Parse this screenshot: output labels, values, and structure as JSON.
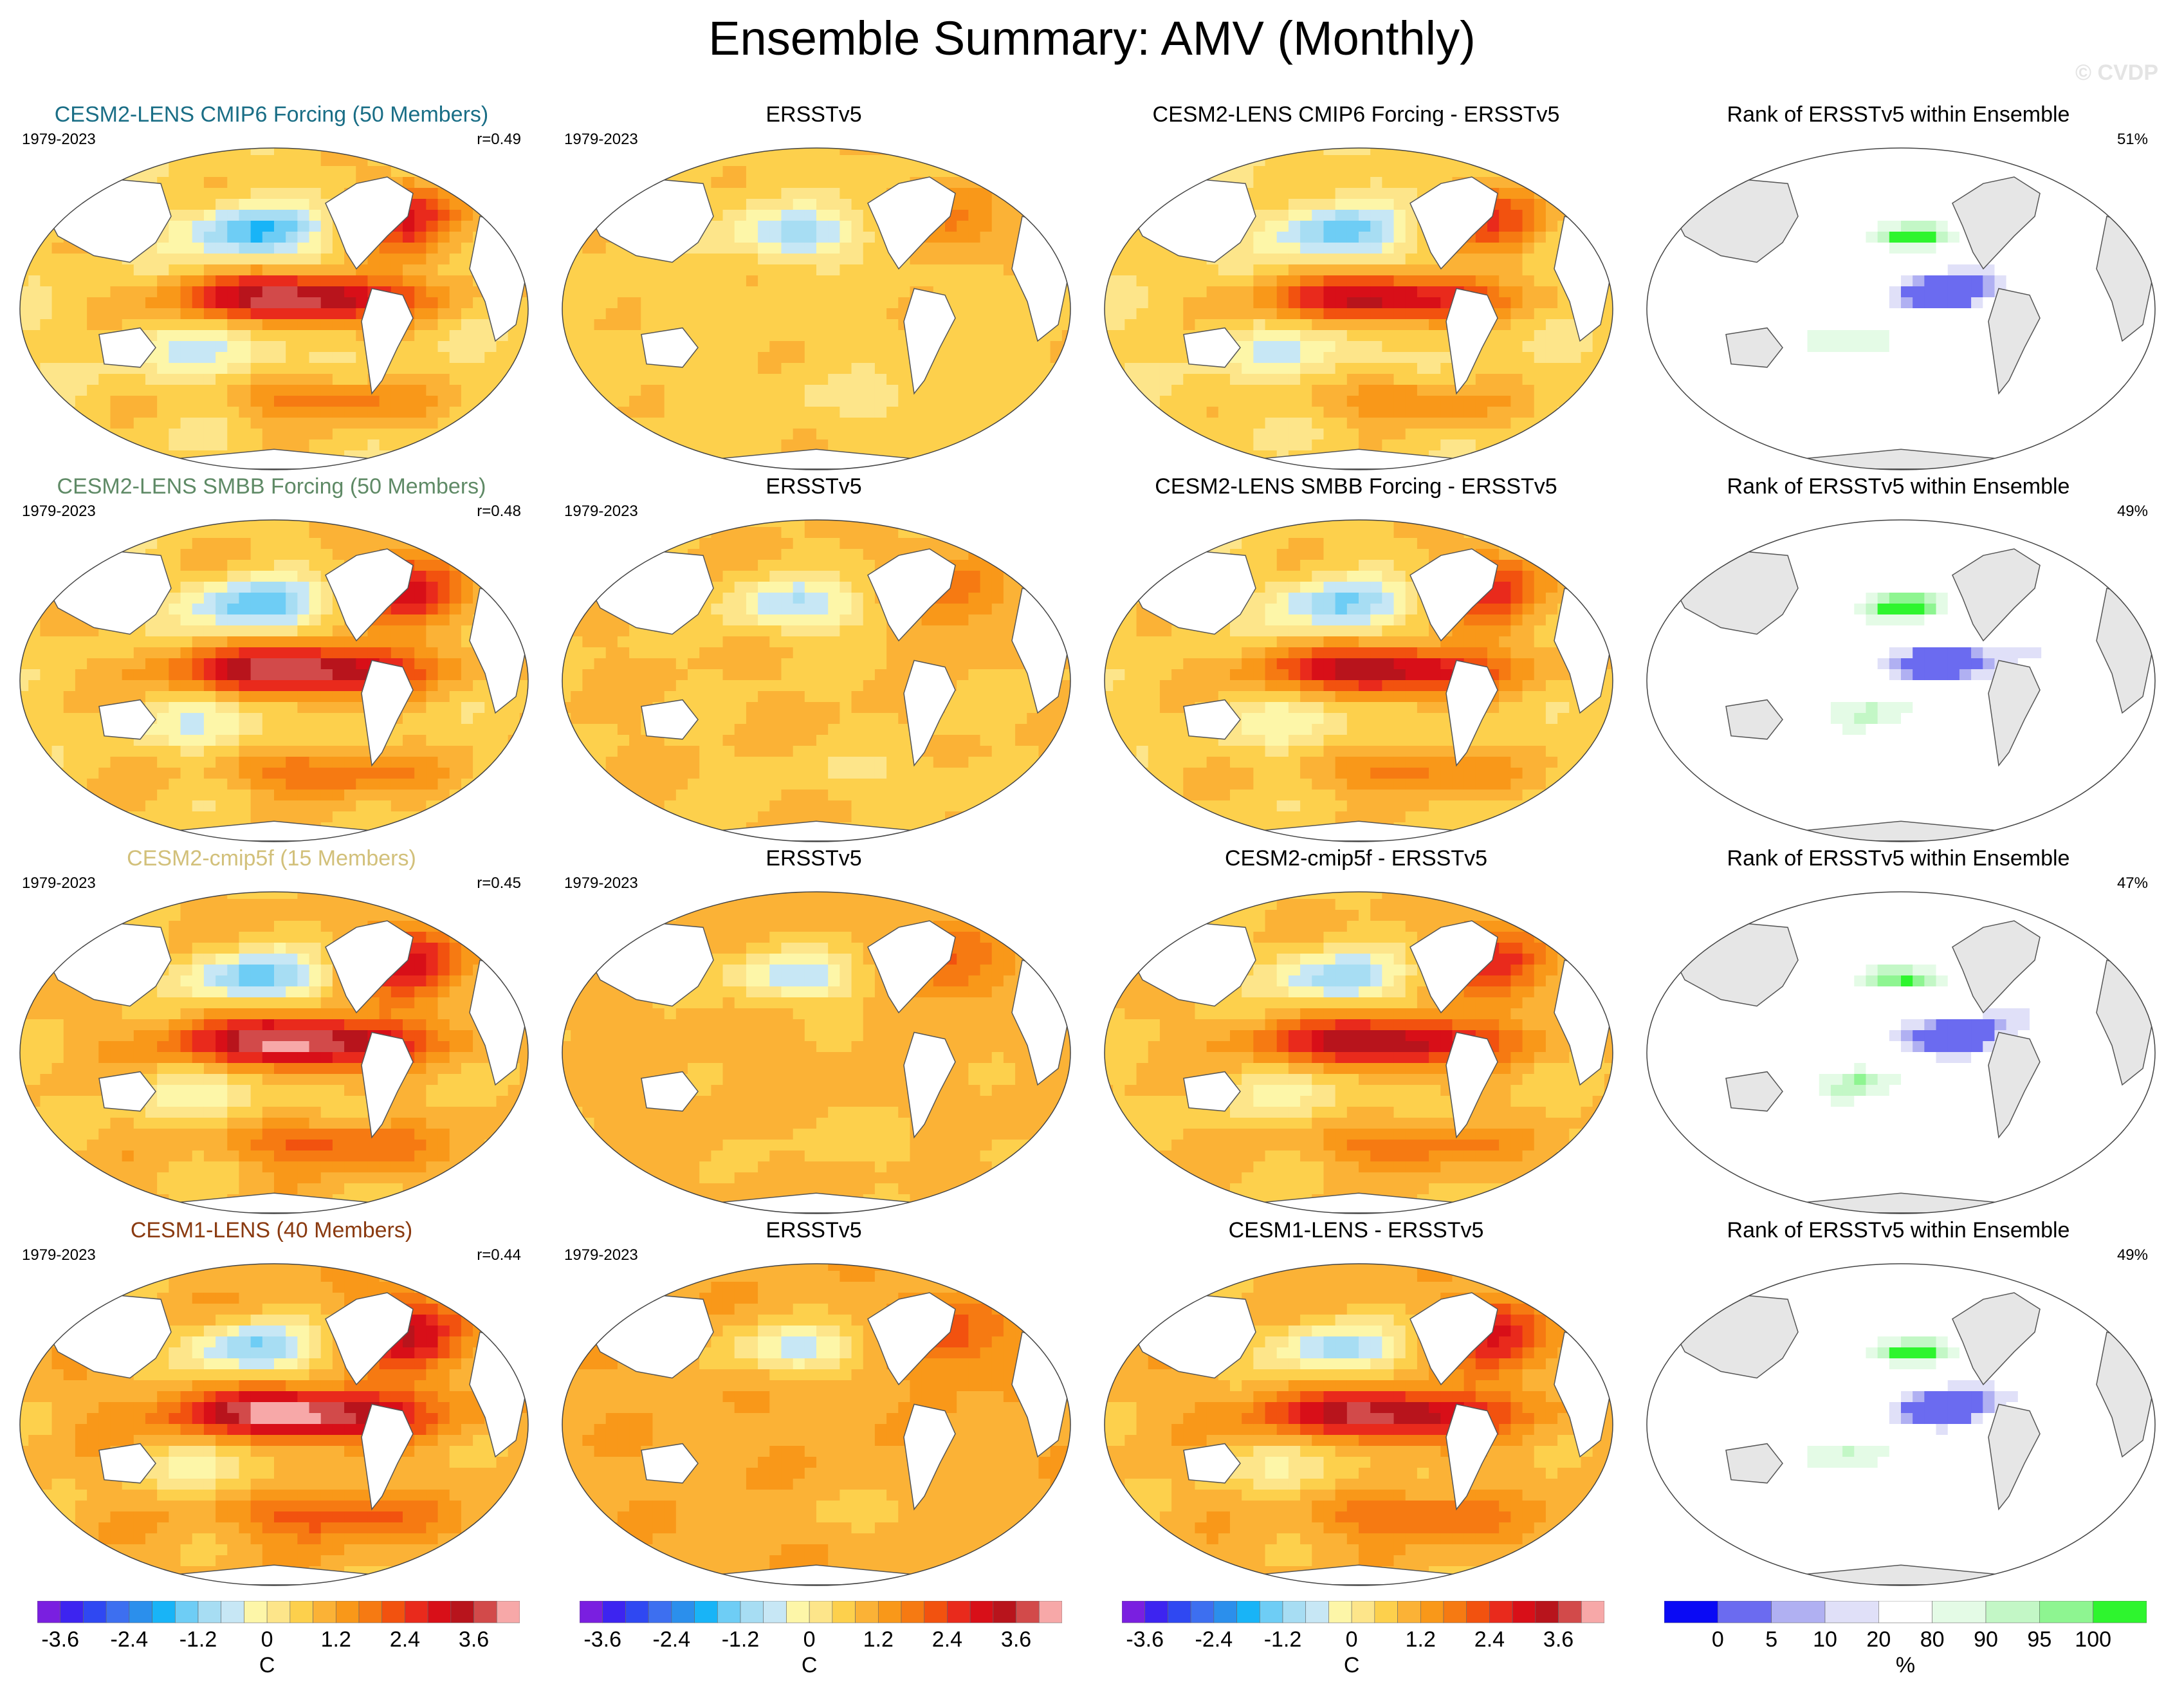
{
  "title": "Ensemble Summary: AMV (Monthly)",
  "watermark": "© CVDP",
  "colors": {
    "diverging": [
      "#7a1fe0",
      "#3d24f0",
      "#2f48f2",
      "#3d6ff0",
      "#2b8fec",
      "#18b4f7",
      "#6ecdf5",
      "#a7ddf3",
      "#c7e7f5",
      "#fdf6a8",
      "#fde58a",
      "#fdd04c",
      "#fbb236",
      "#f99819",
      "#f67a12",
      "#f2520f",
      "#e92a1c",
      "#d80f18",
      "#b8141c",
      "#d24a4a",
      "#f7a8a8"
    ],
    "rank": [
      "#0a0af5",
      "#6b6bf0",
      "#b0b0f2",
      "#e0e0f8",
      "#ffffff",
      "#e4fbe6",
      "#c3f7c6",
      "#8ef591",
      "#2ef52e"
    ],
    "land": "#ffffff",
    "rank_land": "#e6e6e6",
    "coast": "#555555"
  },
  "chart_data": [
    {
      "row": 1,
      "col": 1,
      "type": "heatmap",
      "title": "CESM2-LENS CMIP6 Forcing (50 Members)",
      "title_color": "#1a6e86",
      "years": "1979-2023",
      "corr": "r=0.49",
      "variable": "AMV SST regression",
      "units": "C"
    },
    {
      "row": 1,
      "col": 2,
      "type": "heatmap",
      "title": "ERSSTv5",
      "title_color": "#000000",
      "years": "1979-2023",
      "corr": "",
      "variable": "AMV SST regression",
      "units": "C"
    },
    {
      "row": 1,
      "col": 3,
      "type": "heatmap",
      "title": "CESM2-LENS CMIP6 Forcing - ERSSTv5",
      "title_color": "#000000",
      "years": "",
      "corr": "",
      "variable": "difference",
      "units": "C"
    },
    {
      "row": 1,
      "col": 4,
      "type": "heatmap",
      "title": "Rank of ERSSTv5 within Ensemble",
      "title_color": "#000000",
      "years": "",
      "corr": "51%",
      "variable": "rank",
      "units": "%"
    },
    {
      "row": 2,
      "col": 1,
      "type": "heatmap",
      "title": "CESM2-LENS SMBB Forcing (50 Members)",
      "title_color": "#5f8a66",
      "years": "1979-2023",
      "corr": "r=0.48",
      "variable": "AMV SST regression",
      "units": "C"
    },
    {
      "row": 2,
      "col": 2,
      "type": "heatmap",
      "title": "ERSSTv5",
      "title_color": "#000000",
      "years": "1979-2023",
      "corr": "",
      "variable": "AMV SST regression",
      "units": "C"
    },
    {
      "row": 2,
      "col": 3,
      "type": "heatmap",
      "title": "CESM2-LENS SMBB Forcing - ERSSTv5",
      "title_color": "#000000",
      "years": "",
      "corr": "",
      "variable": "difference",
      "units": "C"
    },
    {
      "row": 2,
      "col": 4,
      "type": "heatmap",
      "title": "Rank of ERSSTv5 within Ensemble",
      "title_color": "#000000",
      "years": "",
      "corr": "49%",
      "variable": "rank",
      "units": "%"
    },
    {
      "row": 3,
      "col": 1,
      "type": "heatmap",
      "title": "CESM2-cmip5f (15 Members)",
      "title_color": "#d2c07a",
      "years": "1979-2023",
      "corr": "r=0.45",
      "variable": "AMV SST regression",
      "units": "C"
    },
    {
      "row": 3,
      "col": 2,
      "type": "heatmap",
      "title": "ERSSTv5",
      "title_color": "#000000",
      "years": "1979-2023",
      "corr": "",
      "variable": "AMV SST regression",
      "units": "C"
    },
    {
      "row": 3,
      "col": 3,
      "type": "heatmap",
      "title": "CESM2-cmip5f - ERSSTv5",
      "title_color": "#000000",
      "years": "",
      "corr": "",
      "variable": "difference",
      "units": "C"
    },
    {
      "row": 3,
      "col": 4,
      "type": "heatmap",
      "title": "Rank of ERSSTv5 within Ensemble",
      "title_color": "#000000",
      "years": "",
      "corr": "47%",
      "variable": "rank",
      "units": "%"
    },
    {
      "row": 4,
      "col": 1,
      "type": "heatmap",
      "title": "CESM1-LENS (40 Members)",
      "title_color": "#8a3a10",
      "years": "1979-2023",
      "corr": "r=0.44",
      "variable": "AMV SST regression",
      "units": "C"
    },
    {
      "row": 4,
      "col": 2,
      "type": "heatmap",
      "title": "ERSSTv5",
      "title_color": "#000000",
      "years": "1979-2023",
      "corr": "",
      "variable": "AMV SST regression",
      "units": "C"
    },
    {
      "row": 4,
      "col": 3,
      "type": "heatmap",
      "title": "CESM1-LENS - ERSSTv5",
      "title_color": "#000000",
      "years": "",
      "corr": "",
      "variable": "difference",
      "units": "C"
    },
    {
      "row": 4,
      "col": 4,
      "type": "heatmap",
      "title": "Rank of ERSSTv5 within Ensemble",
      "title_color": "#000000",
      "years": "",
      "corr": "49%",
      "variable": "rank",
      "units": "%"
    }
  ],
  "colorbars": {
    "diverging": {
      "levels": [
        -4.0,
        -3.6,
        -3.2,
        -2.8,
        -2.4,
        -2.0,
        -1.6,
        -1.2,
        -0.8,
        -0.4,
        0,
        0.4,
        0.8,
        1.2,
        1.6,
        2.0,
        2.4,
        2.8,
        3.2,
        3.6,
        4.0
      ],
      "tick_labels": [
        "-3.6",
        "-2.4",
        "-1.2",
        "0",
        "1.2",
        "2.4",
        "3.6"
      ],
      "tick_index": [
        1,
        4,
        7,
        10,
        13,
        16,
        19
      ],
      "unit": "C"
    },
    "rank": {
      "tick_labels": [
        "0",
        "5",
        "10",
        "20",
        "80",
        "90",
        "95",
        "100"
      ],
      "tick_index": [
        1,
        2,
        3,
        4,
        5,
        6,
        7,
        8
      ],
      "unit": "%"
    }
  }
}
